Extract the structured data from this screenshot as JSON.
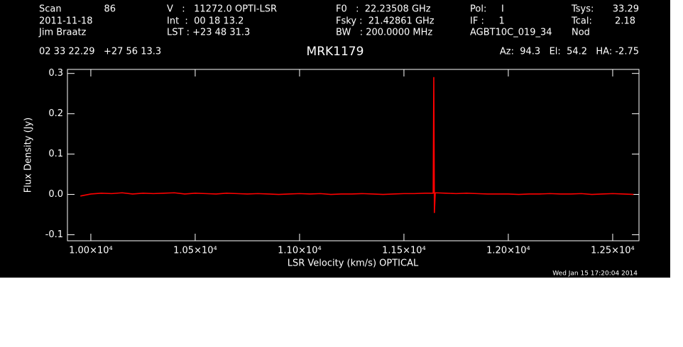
{
  "chart_data": {
    "type": "line",
    "title": "MRK1179",
    "header": [
      "Scan",
      "86",
      "2011-11-18",
      "Jim Braatz",
      "V   :   11272.0 OPTI-LSR",
      "Int  :  00 18 13.2",
      "LST : +23 48 31.3",
      "F0   :  22.23508 GHz",
      "Fsky :  21.42861 GHz",
      "BW   : 200.0000 MHz",
      "Pol:     I",
      "IF :     1",
      "AGBT10C_019_34",
      "Tsys:",
      "33.29",
      "Tcal:",
      "2.18",
      "Nod",
      "02 33 22.29   +27 56 13.3",
      "Az:  94.3   El:  54.2   HA: -2.75"
    ],
    "timestamp": "Wed Jan 15 17:20:04 2014",
    "xlabel": "LSR Velocity (km/s) OPTICAL",
    "ylabel": "Flux Density (Jy)",
    "x": [
      9950,
      10000,
      10050,
      10100,
      10150,
      10200,
      10250,
      10300,
      10350,
      10400,
      10450,
      10500,
      10550,
      10600,
      10650,
      10700,
      10750,
      10800,
      10850,
      10900,
      10950,
      11000,
      11050,
      11100,
      11150,
      11200,
      11250,
      11300,
      11350,
      11400,
      11450,
      11500,
      11550,
      11600,
      11640,
      11643,
      11646,
      11650,
      11700,
      11750,
      11800,
      11850,
      11900,
      11950,
      12000,
      12050,
      12100,
      12150,
      12200,
      12250,
      12300,
      12350,
      12400,
      12450,
      12500,
      12550,
      12600
    ],
    "series": [
      {
        "color": "#ff0000",
        "values": [
          -0.004,
          0.001,
          0.003,
          0.002,
          0.004,
          0.001,
          0.003,
          0.002,
          0.003,
          0.004,
          0.001,
          0.003,
          0.002,
          0.001,
          0.003,
          0.002,
          0.001,
          0.002,
          0.001,
          0.0,
          0.001,
          0.002,
          0.001,
          0.002,
          0.0,
          0.001,
          0.001,
          0.002,
          0.001,
          0.0,
          0.001,
          0.002,
          0.002,
          0.003,
          0.003,
          0.29,
          -0.045,
          0.004,
          0.003,
          0.002,
          0.003,
          0.002,
          0.001,
          0.001,
          0.001,
          0.0,
          0.001,
          0.001,
          0.002,
          0.001,
          0.001,
          0.002,
          0.0,
          0.001,
          0.002,
          0.001,
          0.0
        ]
      }
    ],
    "xlim": [
      9888,
      12626
    ],
    "ylim": [
      -0.115,
      0.31
    ],
    "xticks": [
      {
        "value": 10000,
        "label": "1.00×10⁴"
      },
      {
        "value": 10500,
        "label": "1.05×10⁴"
      },
      {
        "value": 11000,
        "label": "1.10×10⁴"
      },
      {
        "value": 11500,
        "label": "1.15×10⁴"
      },
      {
        "value": 12000,
        "label": "1.20×10⁴"
      },
      {
        "value": 12500,
        "label": "1.25×10⁴"
      }
    ],
    "yticks": [
      -0.1,
      {
        "value": 0,
        "label": "0.0"
      },
      0.1,
      0.2,
      0.3
    ],
    "background": "#000000",
    "axis_color": "#ffffff"
  }
}
